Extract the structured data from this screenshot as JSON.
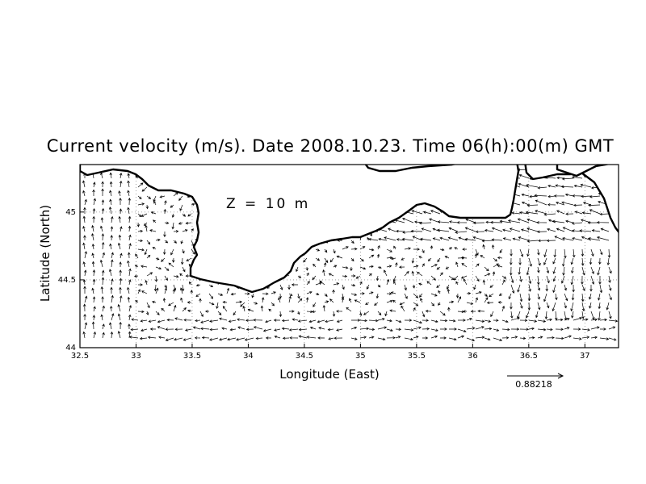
{
  "title": "Current velocity (m/s). Date 2008.10.23. Time 06(h):00(m) GMT",
  "depth_label": "Z = 10 m",
  "xlabel": "Longitude (East)",
  "ylabel": "Latitude (North)",
  "x_ticks": [
    "32.5",
    "33",
    "33.5",
    "34",
    "34.5",
    "35",
    "35.5",
    "36",
    "36.5",
    "37"
  ],
  "y_ticks": [
    "44",
    "44.5",
    "45"
  ],
  "xlim": [
    32.5,
    37.3
  ],
  "ylim": [
    44.0,
    45.35
  ],
  "reference_vector_label": "0.88218",
  "reference_vector_value": 0.88218
}
